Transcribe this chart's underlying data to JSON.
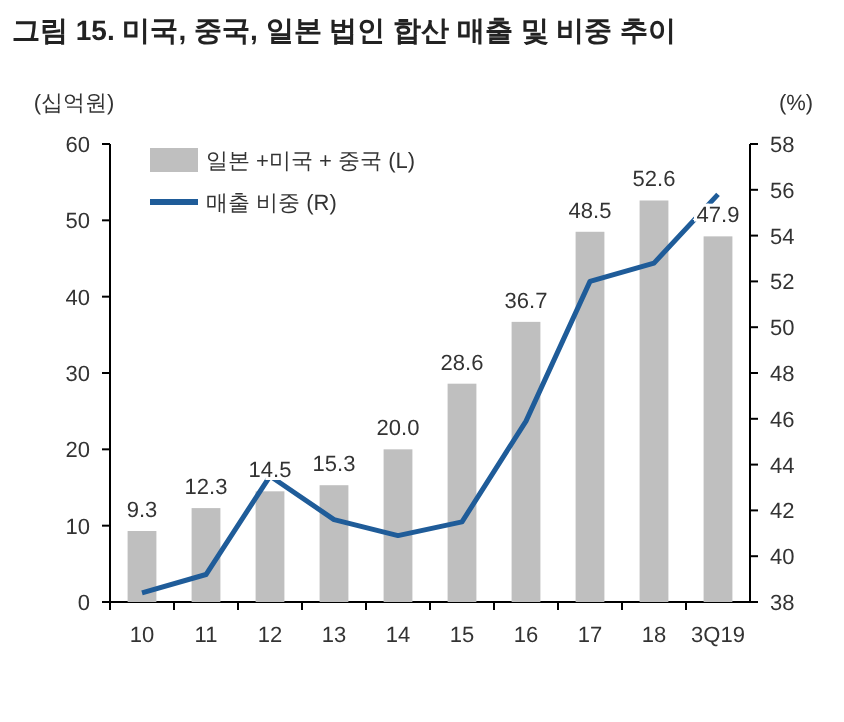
{
  "chart_data": {
    "type": "bar",
    "title": "그림 15. 미국, 중국, 일본 법인 합산 매출 및 비중 추이",
    "ylabel": "(십억원)",
    "y2label": "(%)",
    "categories": [
      "10",
      "11",
      "12",
      "13",
      "14",
      "15",
      "16",
      "17",
      "18",
      "3Q19"
    ],
    "series": [
      {
        "name": "일본 +미국 + 중국 (L)",
        "color": "#bfbfbf",
        "values": [
          9.3,
          12.3,
          14.5,
          15.3,
          20.0,
          28.6,
          36.7,
          48.5,
          52.6,
          47.9
        ],
        "value_labels": [
          "9.3",
          "12.3",
          "14.5",
          "15.3",
          "20.0",
          "28.6",
          "36.7",
          "48.5",
          "52.6",
          "47.9"
        ]
      },
      {
        "name": "매출 비중 (R)",
        "type": "line",
        "axis": "y2",
        "color": "#1f5c99",
        "values": [
          38.4,
          39.2,
          43.5,
          41.6,
          40.9,
          41.5,
          45.9,
          52.0,
          52.8,
          55.8
        ]
      }
    ],
    "ylim": [
      0,
      60
    ],
    "yticks": [
      0,
      10,
      20,
      30,
      40,
      50,
      60
    ],
    "y2lim": [
      38,
      58
    ],
    "y2ticks": [
      38,
      40,
      42,
      44,
      46,
      48,
      50,
      52,
      54,
      56,
      58
    ],
    "legend": "top left",
    "grid": false,
    "marker": "none",
    "line_style": "solid"
  }
}
